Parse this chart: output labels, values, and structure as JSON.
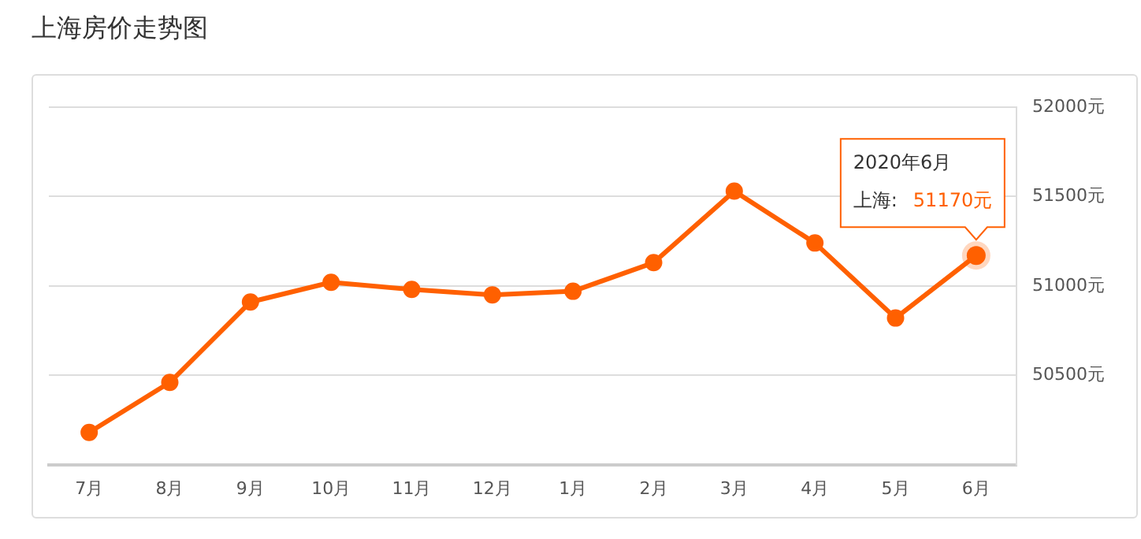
{
  "chart_data": {
    "type": "line",
    "title": "上海房价走势图",
    "categories": [
      "7月",
      "8月",
      "9月",
      "10月",
      "11月",
      "12月",
      "1月",
      "2月",
      "3月",
      "4月",
      "5月",
      "6月"
    ],
    "series": [
      {
        "color": "#ff6000",
        "values": [
          50180,
          50460,
          50910,
          51020,
          50980,
          50950,
          50970,
          51130,
          51530,
          51240,
          50820,
          51170
        ]
      }
    ],
    "ylim": [
      50000,
      52000
    ],
    "yticks": [
      {
        "value": 50000,
        "label": null
      },
      {
        "value": 50500,
        "label": "50500元"
      },
      {
        "value": 51000,
        "label": "51000元"
      },
      {
        "value": 51500,
        "label": "51500元"
      },
      {
        "value": 52000,
        "label": "52000元"
      }
    ],
    "annotations": [
      "2020年6月",
      "上海:",
      {
        "text": "51170元",
        "x": "6月",
        "y": 51170
      }
    ],
    "grid": "y",
    "legend": false,
    "marker": "circle",
    "line_style": "solid"
  }
}
